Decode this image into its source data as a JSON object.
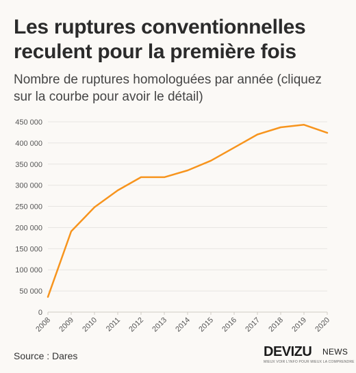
{
  "header": {
    "title": "Les ruptures conventionnelles reculent pour la première fois",
    "subtitle": "Nombre de ruptures homologuées par année (cliquez sur la courbe pour avoir le détail)"
  },
  "footer": {
    "source": "Source : Dares",
    "logo_main": "DEVIZU",
    "logo_news": "NEWS",
    "logo_tagline": "MIEUX VOIR L'INFO POUR MIEUX LA COMPRENDRE"
  },
  "colors": {
    "line": "#f7941d",
    "grid": "#e7e5e2",
    "axis_text": "#555555",
    "background": "#fbf9f6"
  },
  "chart_data": {
    "type": "line",
    "x": [
      "2008",
      "2009",
      "2010",
      "2011",
      "2012",
      "2013",
      "2014",
      "2015",
      "2016",
      "2017",
      "2018",
      "2019",
      "2020"
    ],
    "series": [
      {
        "values": [
          36000,
          191000,
          248000,
          288000,
          319000,
          319000,
          335000,
          358000,
          389000,
          420000,
          437000,
          443000,
          424000
        ]
      }
    ],
    "yticks": [
      "0",
      "50 000",
      "100 000",
      "150 000",
      "200 000",
      "250 000",
      "300 000",
      "350 000",
      "400 000",
      "450 000"
    ],
    "ylim": [
      0,
      450000
    ],
    "grid": true
  }
}
